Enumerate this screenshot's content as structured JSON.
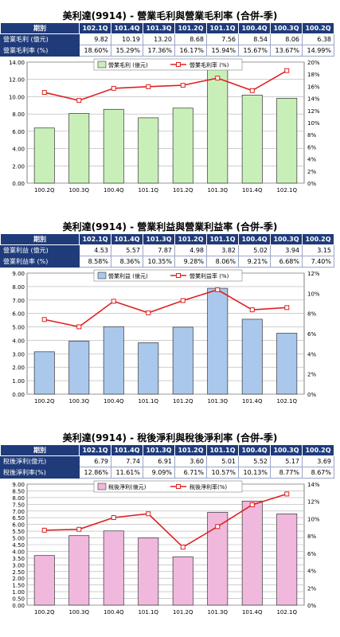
{
  "chart_data": [
    {
      "type": "bar",
      "title": "美利達(9914) - 營業毛利與營業毛利率 (合併-季)",
      "table": {
        "corner": "期別",
        "periods": [
          "102.1Q",
          "101.4Q",
          "101.3Q",
          "101.2Q",
          "101.1Q",
          "100.4Q",
          "100.3Q",
          "100.2Q"
        ],
        "rows": [
          {
            "label": "營業毛利 (億元)",
            "values": [
              "9.82",
              "10.19",
              "13.20",
              "8.68",
              "7.56",
              "8.54",
              "8.06",
              "6.38"
            ]
          },
          {
            "label": "營業毛利率 (%)",
            "values": [
              "18.60%",
              "15.29%",
              "17.36%",
              "16.17%",
              "15.94%",
              "15.67%",
              "13.67%",
              "14.99%"
            ]
          }
        ]
      },
      "categories": [
        "100.2Q",
        "100.3Q",
        "100.4Q",
        "101.1Q",
        "101.2Q",
        "101.3Q",
        "101.4Q",
        "102.1Q"
      ],
      "series": [
        {
          "name": "營業毛利 (億元)",
          "kind": "bar",
          "values": [
            6.38,
            8.06,
            8.54,
            7.56,
            8.68,
            13.2,
            10.19,
            9.82
          ],
          "color": "#c9efb9"
        },
        {
          "name": "營業毛利率 (%)",
          "kind": "line",
          "values": [
            14.99,
            13.67,
            15.67,
            15.94,
            16.17,
            17.36,
            15.29,
            18.6
          ],
          "color": "#e02020"
        }
      ],
      "y_ticks": [
        "0.00",
        "2.00",
        "4.00",
        "6.00",
        "8.00",
        "10.00",
        "12.00",
        "14.00"
      ],
      "y_max": 14,
      "y2_ticks": [
        "0%",
        "2%",
        "4%",
        "6%",
        "8%",
        "10%",
        "12%",
        "14%",
        "16%",
        "18%",
        "20%"
      ],
      "y2_max": 20,
      "grid": true,
      "legend": "top"
    },
    {
      "type": "bar",
      "title": "美利達(9914) - 營業利益與營業利益率 (合併-季)",
      "table": {
        "corner": "期別",
        "periods": [
          "102.1Q",
          "101.4Q",
          "101.3Q",
          "101.2Q",
          "101.1Q",
          "100.4Q",
          "100.3Q",
          "100.2Q"
        ],
        "rows": [
          {
            "label": "營業利益 (億元)",
            "values": [
              "4.53",
              "5.57",
              "7.87",
              "4.98",
              "3.82",
              "5.02",
              "3.94",
              "3.15"
            ]
          },
          {
            "label": "營業利益率 (%)",
            "values": [
              "8.58%",
              "8.36%",
              "10.35%",
              "9.28%",
              "8.06%",
              "9.21%",
              "6.68%",
              "7.40%"
            ]
          }
        ]
      },
      "categories": [
        "100.2Q",
        "100.3Q",
        "100.4Q",
        "101.1Q",
        "101.2Q",
        "101.3Q",
        "101.4Q",
        "102.1Q"
      ],
      "series": [
        {
          "name": "營業利益 (億元)",
          "kind": "bar",
          "values": [
            3.15,
            3.94,
            5.02,
            3.82,
            4.98,
            7.87,
            5.57,
            4.53
          ],
          "color": "#a9c8ec"
        },
        {
          "name": "營業利益率 (%)",
          "kind": "line",
          "values": [
            7.4,
            6.68,
            9.21,
            8.06,
            9.28,
            10.35,
            8.36,
            8.58
          ],
          "color": "#e02020"
        }
      ],
      "y_ticks": [
        "0.00",
        "1.00",
        "2.00",
        "3.00",
        "4.00",
        "5.00",
        "6.00",
        "7.00",
        "8.00",
        "9.00"
      ],
      "y_max": 9,
      "y2_ticks": [
        "0%",
        "2%",
        "4%",
        "6%",
        "8%",
        "10%",
        "12%"
      ],
      "y2_max": 12,
      "grid": true,
      "legend": "top"
    },
    {
      "type": "bar",
      "title": "美利達(9914) - 稅後淨利與稅後淨利率 (合併-季)",
      "table": {
        "corner": "期別",
        "periods": [
          "102.1Q",
          "101.4Q",
          "101.3Q",
          "101.2Q",
          "101.1Q",
          "100.4Q",
          "100.3Q",
          "100.2Q"
        ],
        "rows": [
          {
            "label": "稅後淨利(億元)",
            "values": [
              "6.79",
              "7.74",
              "6.91",
              "3.60",
              "5.01",
              "5.52",
              "5.17",
              "3.69"
            ]
          },
          {
            "label": "稅後淨利率(%)",
            "values": [
              "12.86%",
              "11.61%",
              "9.09%",
              "6.71%",
              "10.57%",
              "10.13%",
              "8.77%",
              "8.67%"
            ]
          }
        ]
      },
      "categories": [
        "100.2Q",
        "100.3Q",
        "100.4Q",
        "101.1Q",
        "101.2Q",
        "101.3Q",
        "101.4Q",
        "102.1Q"
      ],
      "series": [
        {
          "name": "稅後淨利(億元)",
          "kind": "bar",
          "values": [
            3.69,
            5.17,
            5.52,
            5.01,
            3.6,
            6.91,
            7.74,
            6.79
          ],
          "color": "#f0b8dc"
        },
        {
          "name": "稅後淨利率(%)",
          "kind": "line",
          "values": [
            8.67,
            8.77,
            10.13,
            10.57,
            6.71,
            9.09,
            11.61,
            12.86
          ],
          "color": "#e02020"
        }
      ],
      "y_ticks": [
        "0.00",
        "0.50",
        "1.00",
        "1.50",
        "2.00",
        "2.50",
        "3.00",
        "3.50",
        "4.00",
        "4.50",
        "5.00",
        "5.50",
        "6.00",
        "6.50",
        "7.00",
        "7.50",
        "8.00",
        "8.50",
        "9.00"
      ],
      "y_max": 9,
      "y2_ticks": [
        "0%",
        "2%",
        "4%",
        "6%",
        "8%",
        "10%",
        "12%",
        "14%"
      ],
      "y2_max": 14,
      "grid": true,
      "legend": "top"
    }
  ]
}
